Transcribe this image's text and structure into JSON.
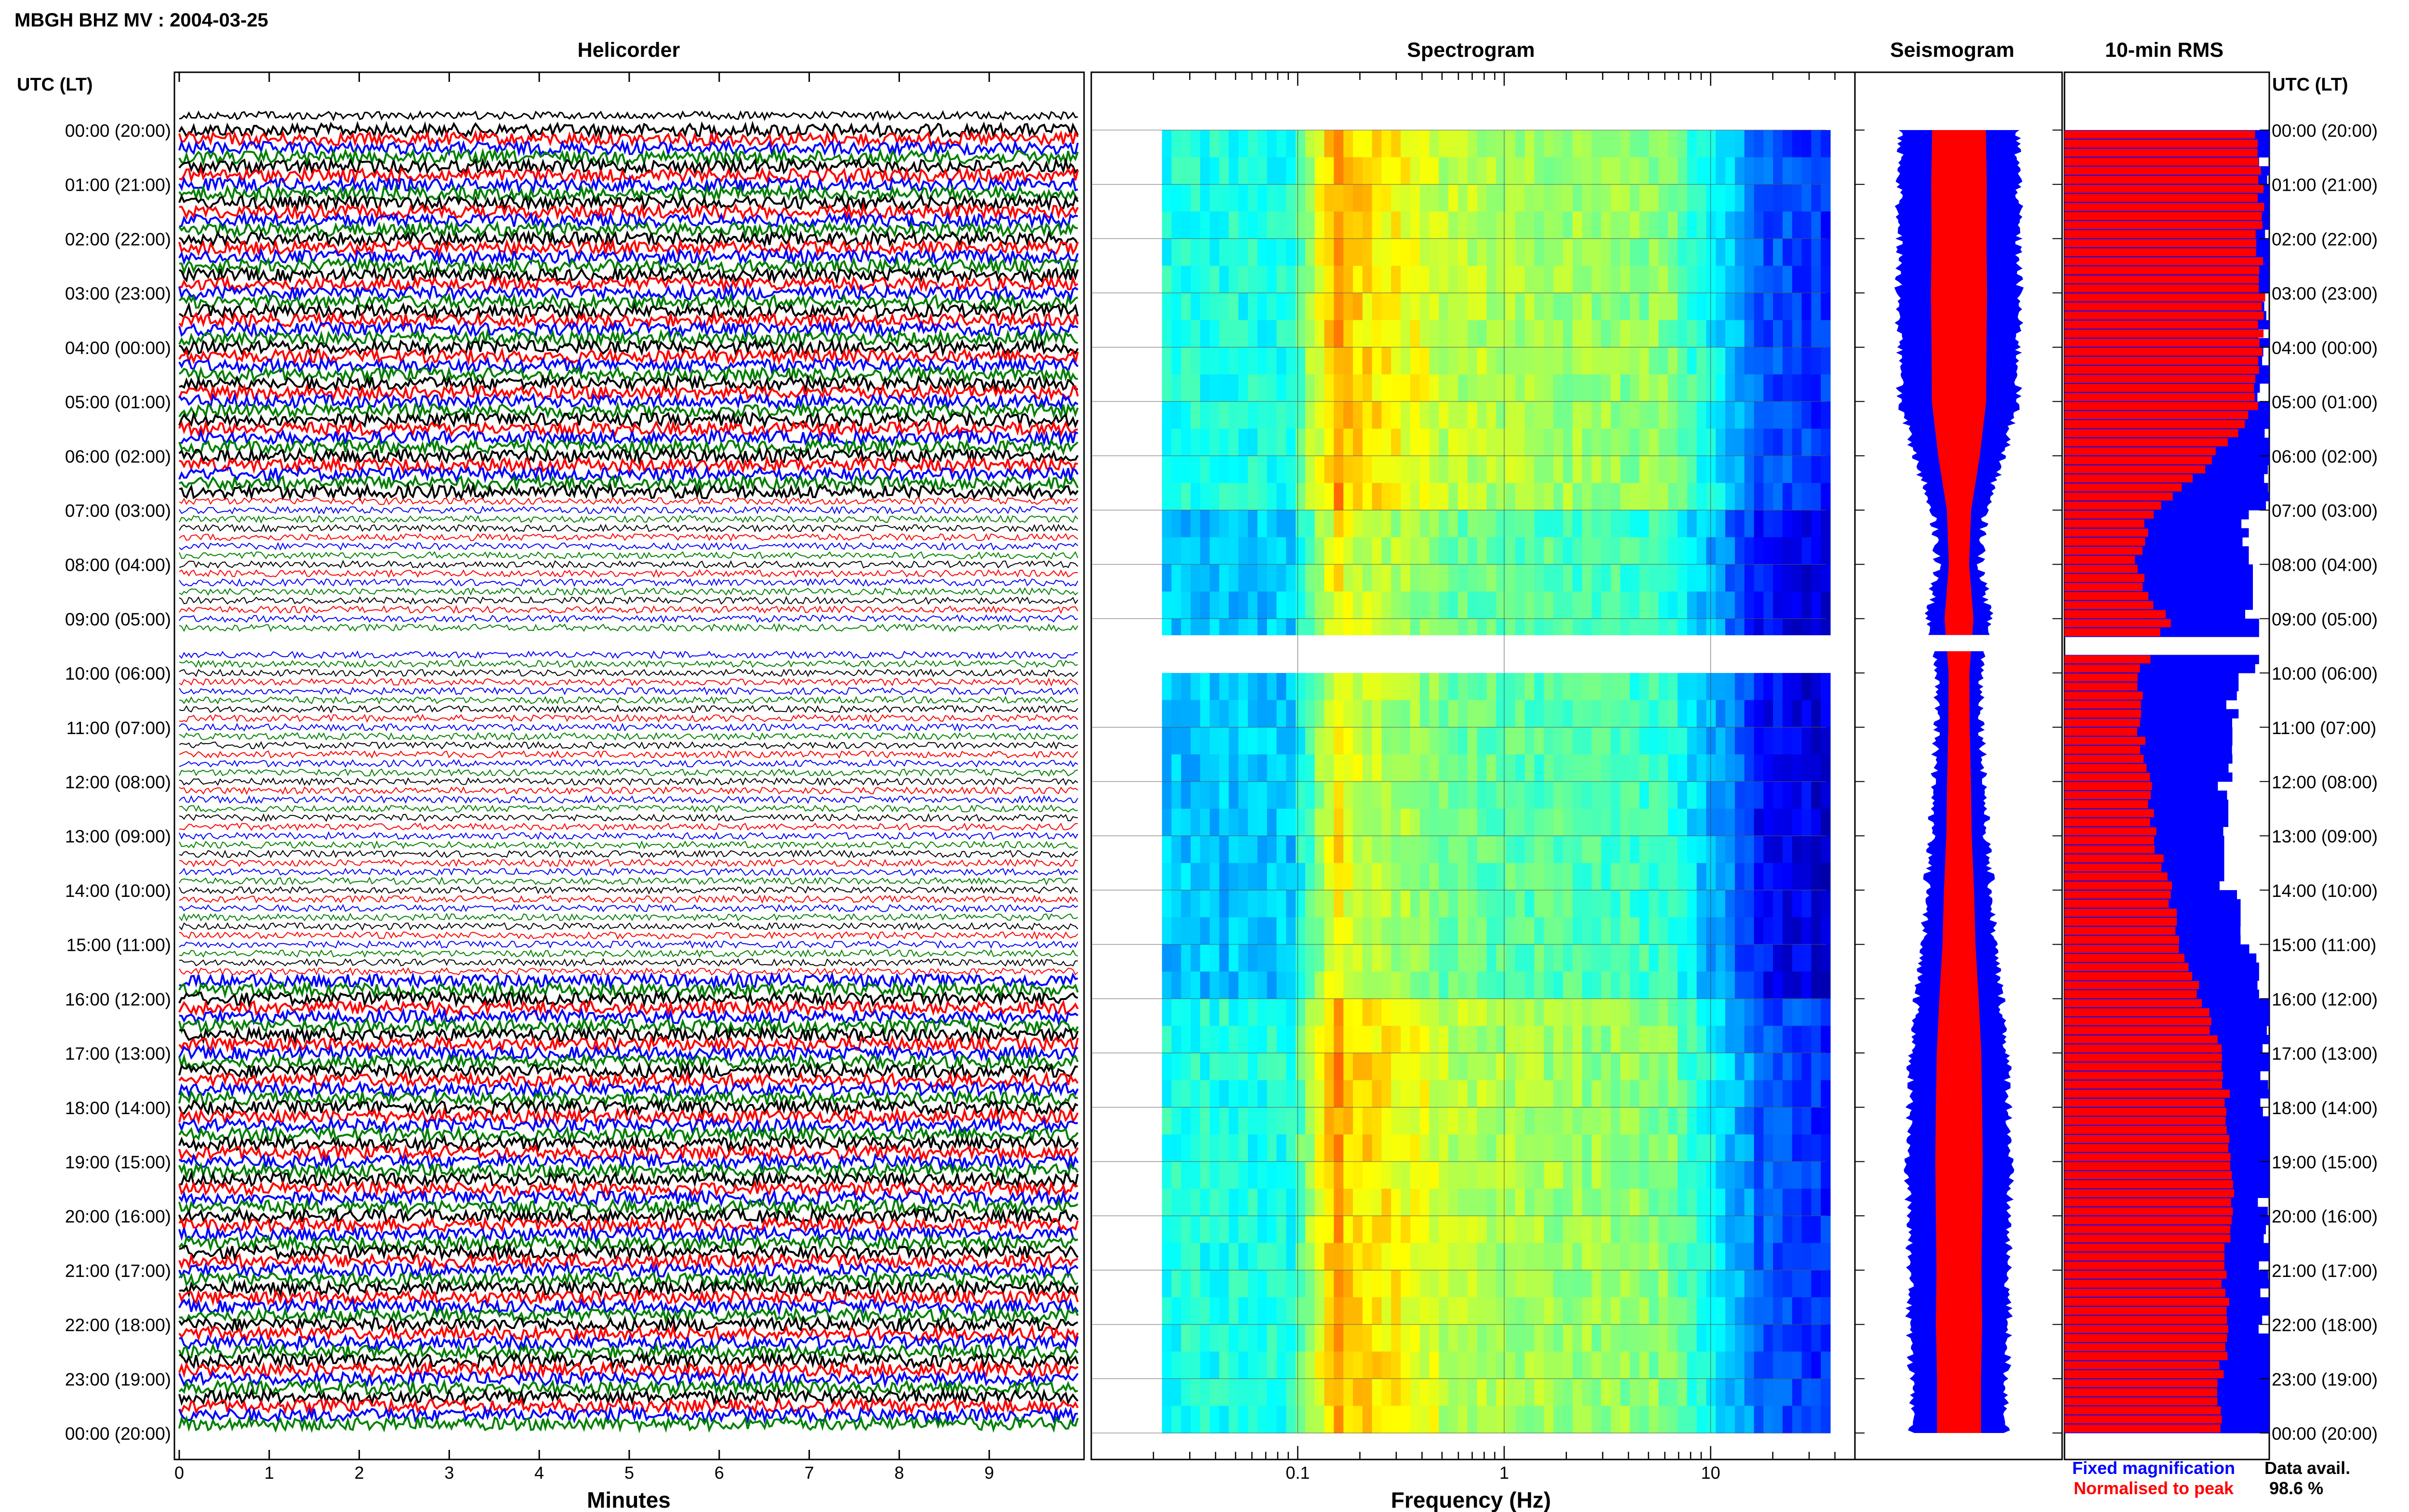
{
  "title": "MBGH BHZ MV : 2004-03-25",
  "left_axis_header": "UTC (LT)",
  "right_axis_header": "UTC (LT)",
  "time_labels": [
    "00:00 (20:00)",
    "01:00 (21:00)",
    "02:00 (22:00)",
    "03:00 (23:00)",
    "04:00 (00:00)",
    "05:00 (01:00)",
    "06:00 (02:00)",
    "07:00 (03:00)",
    "08:00 (04:00)",
    "09:00 (05:00)",
    "10:00 (06:00)",
    "11:00 (07:00)",
    "12:00 (08:00)",
    "13:00 (09:00)",
    "14:00 (10:00)",
    "15:00 (11:00)",
    "16:00 (12:00)",
    "17:00 (13:00)",
    "18:00 (14:00)",
    "19:00 (15:00)",
    "20:00 (16:00)",
    "21:00 (17:00)",
    "22:00 (18:00)",
    "23:00 (19:00)",
    "00:00 (20:00)"
  ],
  "legend": {
    "fixed": "Fixed magnification",
    "normalised": "Normalised to peak",
    "fixed_color": "#0000ff",
    "normalised_color": "#ff0000"
  },
  "data_availability": {
    "label": "Data avail.",
    "value": "98.6 %"
  },
  "chart_data": [
    {
      "type": "line",
      "title": "Helicorder",
      "xlabel": "Minutes",
      "x_ticks": [
        "0",
        "1",
        "2",
        "3",
        "4",
        "5",
        "6",
        "7",
        "8",
        "9"
      ],
      "xlim": [
        0,
        10
      ],
      "ylim_hours_utc": [
        0,
        24
      ],
      "trace_colors": [
        "#000000",
        "#ff0000",
        "#0000ff",
        "#008000"
      ],
      "gap_hours_utc": [
        9.3,
        9.6
      ],
      "quiet_periods_utc": [
        [
          6.7,
          9.3
        ],
        [
          9.6,
          15.6
        ]
      ]
    },
    {
      "type": "heatmap",
      "title": "Spectrogram",
      "xlabel": "Frequency (Hz)",
      "x_scale": "log",
      "x_ticks": [
        "0.1",
        "1",
        "10"
      ],
      "xlim_hz": [
        0.01,
        50
      ],
      "colormap": "jet",
      "gap_hours_utc": [
        9.3,
        9.6
      ]
    },
    {
      "type": "area",
      "title": "Seismogram",
      "series": [
        {
          "name": "Fixed magnification",
          "color": "#0000ff"
        },
        {
          "name": "Normalised to peak",
          "color": "#ff0000"
        }
      ]
    },
    {
      "type": "bar",
      "title": "10-min RMS",
      "orientation": "horizontal",
      "hours_utc": [
        0,
        1,
        2,
        3,
        4,
        5,
        6,
        7,
        8,
        9,
        10,
        11,
        12,
        13,
        14,
        15,
        16,
        17,
        18,
        19,
        20,
        21,
        22,
        23
      ],
      "rms_fraction": [
        0.93,
        0.96,
        0.95,
        0.97,
        0.95,
        0.94,
        0.72,
        0.42,
        0.35,
        0.5,
        0.36,
        0.37,
        0.41,
        0.44,
        0.52,
        0.57,
        0.68,
        0.77,
        0.8,
        0.82,
        0.8,
        0.78,
        0.8,
        0.76
      ],
      "fixed_fraction": [
        1,
        1,
        1,
        1,
        1,
        1,
        1,
        0.9,
        0.92,
        0.95,
        0.85,
        0.82,
        0.8,
        0.78,
        0.86,
        0.95,
        1,
        1,
        1,
        1,
        1,
        1,
        1,
        1
      ],
      "gap_hours_utc": [
        9.3,
        9.6
      ]
    }
  ]
}
